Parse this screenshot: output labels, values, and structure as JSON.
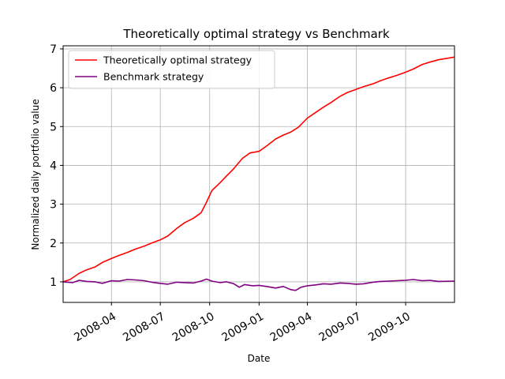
{
  "chart_data": {
    "type": "line",
    "title": "Theoretically optimal strategy vs Benchmark",
    "xlabel": "Date",
    "ylabel": "Normalized daily portfolio value",
    "x_range": [
      "2008-01-02",
      "2009-12-31"
    ],
    "ylim": [
      0.47,
      7.08
    ],
    "x_ticks": [
      {
        "date": "2008-04-01",
        "label": "2008-04"
      },
      {
        "date": "2008-07-01",
        "label": "2008-07"
      },
      {
        "date": "2008-10-01",
        "label": "2008-10"
      },
      {
        "date": "2009-01-01",
        "label": "2009-01"
      },
      {
        "date": "2009-04-01",
        "label": "2009-04"
      },
      {
        "date": "2009-07-01",
        "label": "2009-07"
      },
      {
        "date": "2009-10-01",
        "label": "2009-10"
      }
    ],
    "y_ticks": [
      1,
      2,
      3,
      4,
      5,
      6,
      7
    ],
    "grid": true,
    "legend": "upper-left",
    "series": [
      {
        "name": "Theoretically optimal strategy",
        "color": "#ff0000",
        "points": [
          [
            "2008-01-02",
            1.0
          ],
          [
            "2008-01-15",
            1.06
          ],
          [
            "2008-02-01",
            1.22
          ],
          [
            "2008-02-15",
            1.31
          ],
          [
            "2008-03-01",
            1.38
          ],
          [
            "2008-03-15",
            1.5
          ],
          [
            "2008-04-01",
            1.6
          ],
          [
            "2008-04-15",
            1.68
          ],
          [
            "2008-05-01",
            1.76
          ],
          [
            "2008-05-15",
            1.84
          ],
          [
            "2008-06-01",
            1.92
          ],
          [
            "2008-06-15",
            2.0
          ],
          [
            "2008-07-01",
            2.08
          ],
          [
            "2008-07-15",
            2.18
          ],
          [
            "2008-08-01",
            2.38
          ],
          [
            "2008-08-15",
            2.52
          ],
          [
            "2008-09-01",
            2.64
          ],
          [
            "2008-09-15",
            2.78
          ],
          [
            "2008-09-25",
            3.05
          ],
          [
            "2008-10-05",
            3.35
          ],
          [
            "2008-10-20",
            3.55
          ],
          [
            "2008-11-01",
            3.72
          ],
          [
            "2008-11-15",
            3.92
          ],
          [
            "2008-12-01",
            4.18
          ],
          [
            "2008-12-15",
            4.32
          ],
          [
            "2009-01-01",
            4.36
          ],
          [
            "2009-01-15",
            4.5
          ],
          [
            "2009-02-01",
            4.68
          ],
          [
            "2009-02-15",
            4.78
          ],
          [
            "2009-03-01",
            4.86
          ],
          [
            "2009-03-15",
            4.98
          ],
          [
            "2009-04-01",
            5.22
          ],
          [
            "2009-04-15",
            5.35
          ],
          [
            "2009-05-01",
            5.5
          ],
          [
            "2009-05-15",
            5.62
          ],
          [
            "2009-06-01",
            5.78
          ],
          [
            "2009-06-15",
            5.88
          ],
          [
            "2009-07-01",
            5.96
          ],
          [
            "2009-07-15",
            6.03
          ],
          [
            "2009-08-01",
            6.1
          ],
          [
            "2009-08-15",
            6.18
          ],
          [
            "2009-09-01",
            6.26
          ],
          [
            "2009-09-15",
            6.32
          ],
          [
            "2009-10-01",
            6.4
          ],
          [
            "2009-10-15",
            6.48
          ],
          [
            "2009-11-01",
            6.6
          ],
          [
            "2009-11-15",
            6.66
          ],
          [
            "2009-12-01",
            6.72
          ],
          [
            "2009-12-31",
            6.79
          ]
        ]
      },
      {
        "name": "Benchmark strategy",
        "color": "#800080",
        "points": [
          [
            "2008-01-02",
            1.0
          ],
          [
            "2008-01-20",
            0.98
          ],
          [
            "2008-02-01",
            1.04
          ],
          [
            "2008-02-15",
            1.01
          ],
          [
            "2008-03-01",
            1.0
          ],
          [
            "2008-03-15",
            0.96
          ],
          [
            "2008-04-01",
            1.03
          ],
          [
            "2008-04-15",
            1.02
          ],
          [
            "2008-05-01",
            1.06
          ],
          [
            "2008-05-15",
            1.05
          ],
          [
            "2008-06-01",
            1.03
          ],
          [
            "2008-06-15",
            0.99
          ],
          [
            "2008-07-01",
            0.96
          ],
          [
            "2008-07-15",
            0.94
          ],
          [
            "2008-08-01",
            0.99
          ],
          [
            "2008-08-15",
            0.98
          ],
          [
            "2008-09-01",
            0.97
          ],
          [
            "2008-09-15",
            1.02
          ],
          [
            "2008-09-25",
            1.07
          ],
          [
            "2008-10-05",
            1.02
          ],
          [
            "2008-10-20",
            0.98
          ],
          [
            "2008-11-01",
            1.0
          ],
          [
            "2008-11-15",
            0.95
          ],
          [
            "2008-11-25",
            0.86
          ],
          [
            "2008-12-05",
            0.93
          ],
          [
            "2008-12-20",
            0.9
          ],
          [
            "2009-01-01",
            0.91
          ],
          [
            "2009-01-15",
            0.88
          ],
          [
            "2009-02-01",
            0.84
          ],
          [
            "2009-02-15",
            0.88
          ],
          [
            "2009-03-01",
            0.8
          ],
          [
            "2009-03-10",
            0.78
          ],
          [
            "2009-03-20",
            0.86
          ],
          [
            "2009-04-01",
            0.9
          ],
          [
            "2009-04-15",
            0.92
          ],
          [
            "2009-05-01",
            0.95
          ],
          [
            "2009-05-15",
            0.94
          ],
          [
            "2009-06-01",
            0.97
          ],
          [
            "2009-06-15",
            0.96
          ],
          [
            "2009-07-01",
            0.94
          ],
          [
            "2009-07-15",
            0.95
          ],
          [
            "2009-08-01",
            0.99
          ],
          [
            "2009-08-15",
            1.01
          ],
          [
            "2009-09-01",
            1.02
          ],
          [
            "2009-09-15",
            1.03
          ],
          [
            "2009-10-01",
            1.04
          ],
          [
            "2009-10-15",
            1.06
          ],
          [
            "2009-11-01",
            1.03
          ],
          [
            "2009-11-15",
            1.04
          ],
          [
            "2009-12-01",
            1.01
          ],
          [
            "2009-12-31",
            1.02
          ]
        ]
      }
    ]
  }
}
